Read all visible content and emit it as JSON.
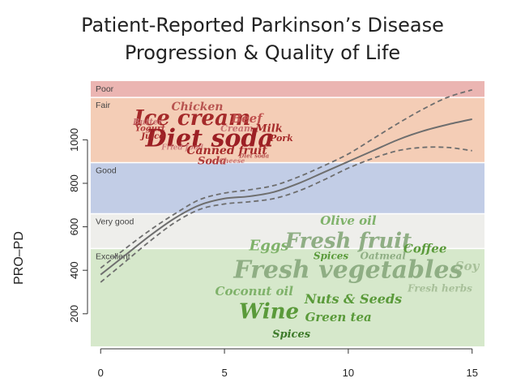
{
  "title_lines": [
    "Patient-Reported Parkinson’s Disease",
    "Progression & Quality of Life"
  ],
  "chart_data": {
    "type": "line",
    "title": "Patient-Reported Parkinson’s Disease Progression & Quality of Life",
    "xlabel": "",
    "ylabel": "PRO–PD",
    "xlim": [
      -0.4,
      15.5
    ],
    "ylim": [
      50,
      1270
    ],
    "x_ticks": [
      0,
      5,
      10,
      15
    ],
    "y_ticks": [
      200,
      400,
      600,
      800,
      1000
    ],
    "bands": [
      {
        "label": "Excellent",
        "from": 50,
        "to": 500,
        "color": "#d6e8cb"
      },
      {
        "label": "Very good",
        "from": 500,
        "to": 660,
        "color": "#eeeeeb"
      },
      {
        "label": "Good",
        "from": 660,
        "to": 895,
        "color": "#c2cde6"
      },
      {
        "label": "Fair",
        "from": 895,
        "to": 1195,
        "color": "#f4cdb6"
      },
      {
        "label": "Poor",
        "from": 1195,
        "to": 1270,
        "color": "#ebb5b2"
      }
    ],
    "series": [
      {
        "style": "solid",
        "x": [
          0,
          1,
          2,
          3,
          4,
          5,
          6,
          7,
          8,
          9,
          10,
          11,
          12,
          13,
          14,
          15
        ],
        "y": [
          380,
          470,
          560,
          640,
          700,
          730,
          740,
          760,
          800,
          850,
          900,
          950,
          1000,
          1040,
          1070,
          1095
        ]
      },
      {
        "style": "dashed",
        "x": [
          0,
          1,
          2,
          3,
          4,
          5,
          6,
          7,
          8,
          9,
          10,
          11,
          12,
          13,
          14,
          15
        ],
        "y": [
          410,
          500,
          585,
          660,
          725,
          755,
          770,
          790,
          830,
          880,
          935,
          1005,
          1075,
          1140,
          1195,
          1230
        ]
      },
      {
        "style": "dashed",
        "x": [
          0,
          1,
          2,
          3,
          4,
          5,
          6,
          7,
          8,
          9,
          10,
          11,
          12,
          13,
          14,
          15
        ],
        "y": [
          345,
          440,
          535,
          620,
          680,
          705,
          715,
          730,
          765,
          815,
          870,
          915,
          950,
          965,
          965,
          950
        ]
      }
    ],
    "word_cloud": [
      {
        "text": "Chicken",
        "x": 3.9,
        "y": 1150,
        "size": 14,
        "color": "#b85450"
      },
      {
        "text": "Ice cream",
        "x": 3.7,
        "y": 1095,
        "size": 26,
        "color": "#a52a2a"
      },
      {
        "text": "Beef",
        "x": 5.9,
        "y": 1095,
        "size": 15,
        "color": "#c0504d"
      },
      {
        "text": "Butter",
        "x": 1.9,
        "y": 1080,
        "size": 10,
        "color": "#c87070"
      },
      {
        "text": "Yogurt",
        "x": 2.0,
        "y": 1050,
        "size": 10,
        "color": "#b03a3a"
      },
      {
        "text": "Cream",
        "x": 5.5,
        "y": 1050,
        "size": 11,
        "color": "#c87070"
      },
      {
        "text": "Milk",
        "x": 6.8,
        "y": 1050,
        "size": 13,
        "color": "#a52a2a"
      },
      {
        "text": "Diet soda",
        "x": 4.4,
        "y": 1000,
        "size": 30,
        "color": "#9c1f24"
      },
      {
        "text": "Juice",
        "x": 2.1,
        "y": 1015,
        "size": 10,
        "color": "#a52a2a"
      },
      {
        "text": "Pork",
        "x": 7.3,
        "y": 1005,
        "size": 11,
        "color": "#a52a2a"
      },
      {
        "text": "Fried food",
        "x": 3.3,
        "y": 965,
        "size": 9,
        "color": "#d08080"
      },
      {
        "text": "Canned fruit",
        "x": 5.1,
        "y": 950,
        "size": 14,
        "color": "#a52a2a"
      },
      {
        "text": "Diet soda",
        "x": 6.2,
        "y": 925,
        "size": 7,
        "color": "#b85450"
      },
      {
        "text": "Soda",
        "x": 4.5,
        "y": 900,
        "size": 13,
        "color": "#b03a3a"
      },
      {
        "text": "Cheese",
        "x": 5.3,
        "y": 900,
        "size": 8,
        "color": "#c87070"
      },
      {
        "text": "Olive oil",
        "x": 10.0,
        "y": 625,
        "size": 15,
        "color": "#7fb26a"
      },
      {
        "text": "Eggs",
        "x": 6.8,
        "y": 510,
        "size": 18,
        "color": "#7fb26a"
      },
      {
        "text": "Fresh fruit",
        "x": 10.0,
        "y": 530,
        "size": 26,
        "color": "#8fae84"
      },
      {
        "text": "Coffee",
        "x": 13.1,
        "y": 495,
        "size": 15,
        "color": "#5a9a3a"
      },
      {
        "text": "Spices",
        "x": 9.3,
        "y": 465,
        "size": 12,
        "color": "#5a9a3a"
      },
      {
        "text": "Oatmeal",
        "x": 11.4,
        "y": 465,
        "size": 12,
        "color": "#8fae84"
      },
      {
        "text": "Soy",
        "x": 14.8,
        "y": 415,
        "size": 15,
        "color": "#a8c09a"
      },
      {
        "text": "Fresh vegetables",
        "x": 10.0,
        "y": 395,
        "size": 30,
        "color": "#8fae84"
      },
      {
        "text": "Fresh herbs",
        "x": 13.7,
        "y": 315,
        "size": 12,
        "color": "#a8c09a"
      },
      {
        "text": "Coconut oil",
        "x": 6.2,
        "y": 300,
        "size": 15,
        "color": "#7fb26a"
      },
      {
        "text": "Nuts & Seeds",
        "x": 10.2,
        "y": 265,
        "size": 16,
        "color": "#5a9a3a"
      },
      {
        "text": "Wine",
        "x": 6.8,
        "y": 205,
        "size": 26,
        "color": "#5a9a3a"
      },
      {
        "text": "Green tea",
        "x": 9.6,
        "y": 180,
        "size": 15,
        "color": "#5a9a3a"
      },
      {
        "text": "Spices",
        "x": 7.7,
        "y": 105,
        "size": 13,
        "color": "#3d7a2a"
      }
    ]
  }
}
